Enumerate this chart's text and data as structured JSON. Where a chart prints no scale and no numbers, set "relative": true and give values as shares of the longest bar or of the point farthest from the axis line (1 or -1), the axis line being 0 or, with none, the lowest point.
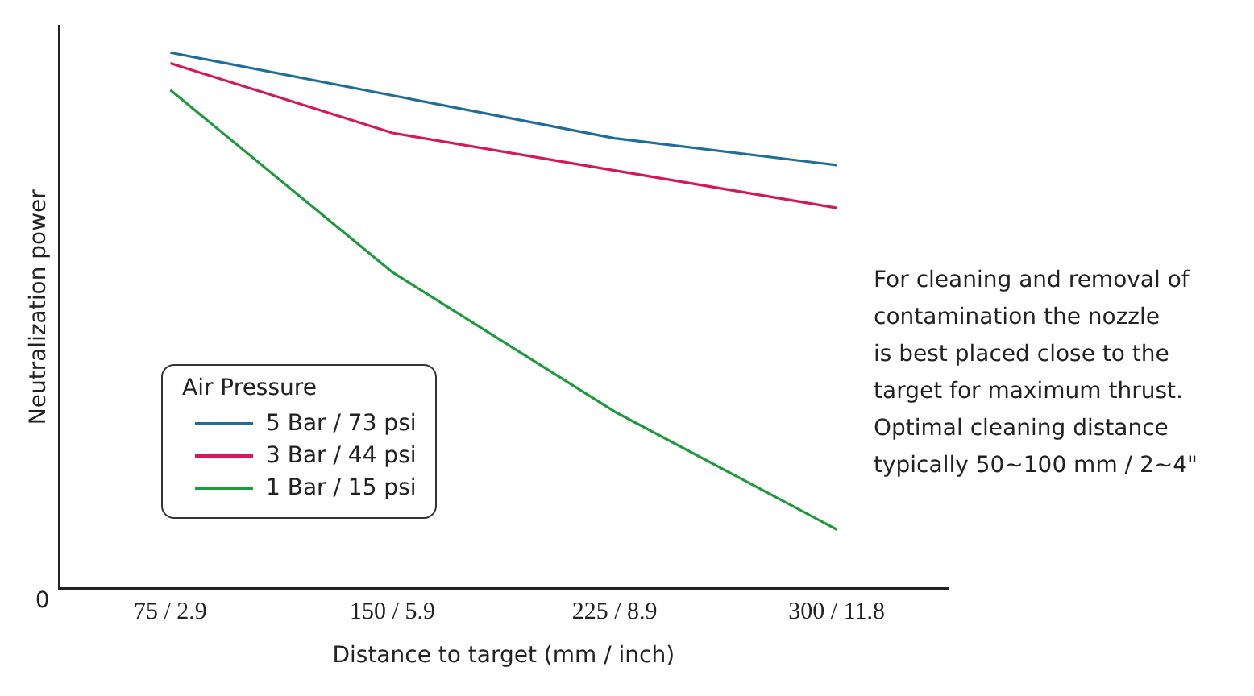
{
  "chart_data": {
    "type": "line",
    "relative": true,
    "xlabel": "Distance to target (mm / inch)",
    "ylabel": "Neutralization power",
    "categories": [
      "75 / 2.9",
      "150 / 5.9",
      "225 / 8.9",
      "300 / 11.8"
    ],
    "legend_title": "Air Pressure",
    "legend": "bottom left",
    "grid": false,
    "marker": "none",
    "line_style": "solid",
    "series": [
      {
        "name": "5 Bar / 73 psi",
        "color": "#1f6e9a",
        "values": [
          1,
          0.92,
          0.84,
          0.79
        ]
      },
      {
        "name": "3 Bar / 44 psi",
        "color": "#d6175c",
        "values": [
          0.98,
          0.85,
          0.78,
          0.71
        ]
      },
      {
        "name": "1 Bar / 15 psi",
        "color": "#1e9b3c",
        "values": [
          0.93,
          0.59,
          0.33,
          0.11
        ]
      }
    ],
    "annotations": [
      "0",
      "For cleaning and removal of\ncontamination the nozzle\nis best placed close to the\ntarget for maximum thrust.\nOptimal cleaning distance\ntypically 50~100 mm / 2~4\""
    ]
  }
}
